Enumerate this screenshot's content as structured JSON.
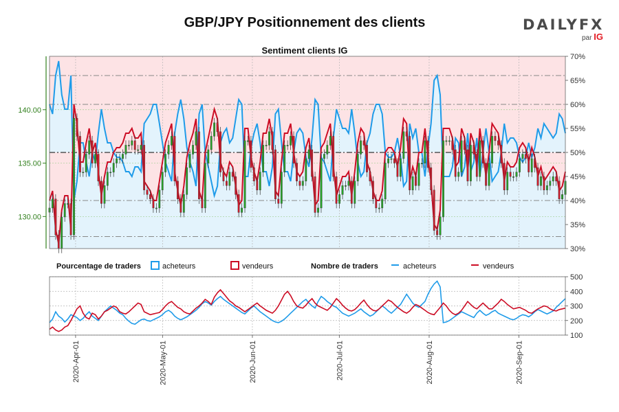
{
  "title": "GBP/JPY Positionnement des clients",
  "logo": {
    "main": "DAILYFX",
    "sub_prefix": "par",
    "sub_brand": "IG"
  },
  "colors": {
    "buyers": "#1e9be9",
    "sellers": "#cc0c24",
    "buyers_fill": "#e3f3fc",
    "sellers_fill": "#fde3e5",
    "candle_up": "#27a327",
    "candle_down": "#d11a2a",
    "price_axis": "#33801f"
  },
  "legend": {
    "pct_heading": "Pourcentage de traders",
    "count_heading": "Nombre de traders",
    "buyers": "acheteurs",
    "sellers": "vendeurs"
  },
  "chart_data": [
    {
      "type": "line",
      "title": "Sentiment clients IG",
      "x_ticks": [
        "2020-Apr-01",
        "2020-May-01",
        "2020-Jun-01",
        "2020-Jul-01",
        "2020-Aug-01",
        "2020-Sep-01"
      ],
      "x_range": [
        "2020-03-23",
        "2020-09-17"
      ],
      "price_axis": {
        "ticks": [
          "130.00",
          "135.00",
          "140.00"
        ],
        "range": [
          127,
          145
        ]
      },
      "pct_axis": {
        "ticks": [
          "30%",
          "35%",
          "40%",
          "45%",
          "50%",
          "55%",
          "60%",
          "65%",
          "70%"
        ],
        "range": [
          30,
          70
        ]
      },
      "series": [
        {
          "name": "acheteurs",
          "values_pct": [
            60,
            58,
            66,
            69,
            62,
            59,
            59,
            66,
            40,
            44,
            52,
            52,
            48,
            45,
            50,
            48,
            54,
            59,
            55,
            52,
            52,
            50,
            49,
            49,
            48,
            46,
            46,
            45,
            47,
            47,
            46,
            56,
            57,
            58,
            60,
            60,
            56,
            52,
            48,
            46,
            44,
            54,
            58,
            61,
            57,
            51,
            48,
            46,
            43,
            58,
            60,
            50,
            47,
            44,
            41,
            43,
            52,
            54,
            55,
            52,
            53,
            57,
            61,
            60,
            45,
            45,
            51,
            54,
            56,
            52,
            46,
            46,
            43,
            47,
            58,
            59,
            52,
            46,
            46,
            44,
            50,
            54,
            55,
            54,
            49,
            47,
            53,
            61,
            60,
            49,
            48,
            46,
            44,
            53,
            59,
            57,
            55,
            55,
            54,
            59,
            54,
            48,
            45,
            46,
            52,
            54,
            58,
            60,
            60,
            58,
            50,
            49,
            49,
            50,
            53,
            49,
            43,
            44,
            56,
            53,
            55,
            50,
            50,
            45,
            51,
            56,
            65,
            66,
            62,
            45,
            45,
            45,
            47,
            53,
            52,
            45,
            47,
            54,
            46,
            48,
            53,
            45,
            50,
            55,
            50,
            44,
            45,
            46,
            50,
            56,
            52,
            53,
            53,
            52,
            49,
            48,
            49,
            52,
            49,
            51,
            55,
            53,
            56,
            55,
            54,
            53,
            54,
            58,
            57,
            54
          ]
        },
        {
          "name": "vendeurs",
          "values_pct": [
            40,
            42,
            34,
            31,
            38,
            41,
            41,
            34,
            60,
            56,
            48,
            48,
            52,
            55,
            50,
            52,
            46,
            41,
            45,
            48,
            48,
            50,
            51,
            51,
            52,
            54,
            54,
            55,
            53,
            53,
            54,
            44,
            43,
            42,
            40,
            40,
            44,
            48,
            52,
            54,
            56,
            46,
            42,
            39,
            43,
            49,
            52,
            54,
            57,
            42,
            40,
            50,
            53,
            56,
            59,
            57,
            48,
            46,
            45,
            48,
            47,
            43,
            39,
            40,
            55,
            55,
            49,
            46,
            44,
            48,
            54,
            54,
            57,
            53,
            42,
            41,
            48,
            54,
            54,
            56,
            50,
            46,
            45,
            46,
            51,
            53,
            47,
            39,
            40,
            51,
            52,
            54,
            56,
            47,
            41,
            43,
            45,
            45,
            46,
            41,
            46,
            52,
            55,
            54,
            48,
            46,
            42,
            40,
            40,
            42,
            50,
            51,
            51,
            50,
            47,
            51,
            57,
            56,
            44,
            47,
            45,
            50,
            50,
            55,
            49,
            44,
            35,
            34,
            38,
            55,
            55,
            55,
            53,
            47,
            48,
            55,
            53,
            46,
            54,
            52,
            47,
            55,
            50,
            45,
            50,
            56,
            55,
            54,
            50,
            44,
            48,
            47,
            47,
            48,
            51,
            52,
            51,
            48,
            51,
            49,
            45,
            47,
            44,
            45,
            46,
            47,
            46,
            42,
            43,
            46
          ]
        }
      ],
      "reference_lines_pct": [
        32.5,
        40,
        50,
        60,
        66
      ]
    },
    {
      "type": "line",
      "x_range": [
        "2020-03-23",
        "2020-09-17"
      ],
      "count_axis": {
        "ticks": [
          "100",
          "200",
          "300",
          "400",
          "500"
        ],
        "range": [
          100,
          500
        ]
      },
      "series": [
        {
          "name": "acheteurs",
          "values": [
            185,
            210,
            260,
            230,
            215,
            190,
            210,
            240,
            230,
            220,
            200,
            215,
            240,
            260,
            230,
            215,
            200,
            230,
            260,
            280,
            300,
            285,
            270,
            250,
            240,
            215,
            195,
            180,
            175,
            190,
            205,
            210,
            200,
            195,
            205,
            215,
            225,
            240,
            260,
            270,
            255,
            230,
            215,
            205,
            215,
            225,
            240,
            255,
            270,
            290,
            315,
            330,
            320,
            305,
            330,
            350,
            365,
            345,
            330,
            315,
            300,
            285,
            270,
            255,
            245,
            265,
            285,
            300,
            280,
            260,
            245,
            230,
            215,
            200,
            190,
            185,
            195,
            210,
            230,
            250,
            270,
            290,
            310,
            330,
            345,
            320,
            300,
            285,
            330,
            365,
            350,
            330,
            315,
            300,
            290,
            270,
            250,
            240,
            230,
            240,
            250,
            265,
            280,
            260,
            245,
            230,
            240,
            260,
            280,
            300,
            285,
            265,
            250,
            270,
            290,
            310,
            345,
            380,
            350,
            320,
            300,
            290,
            310,
            330,
            380,
            420,
            450,
            470,
            430,
            185,
            190,
            200,
            215,
            230,
            245,
            260,
            250,
            240,
            230,
            220,
            250,
            270,
            250,
            235,
            245,
            260,
            270,
            250,
            240,
            230,
            220,
            210,
            205,
            215,
            230,
            240,
            235,
            225,
            240,
            260,
            275,
            265,
            255,
            245,
            255,
            265,
            290,
            310,
            330,
            350
          ]
        },
        {
          "name": "vendeurs",
          "values": [
            140,
            155,
            135,
            125,
            135,
            155,
            165,
            200,
            240,
            280,
            300,
            250,
            220,
            210,
            250,
            240,
            210,
            230,
            260,
            270,
            285,
            300,
            290,
            260,
            250,
            245,
            260,
            280,
            300,
            320,
            310,
            260,
            250,
            240,
            245,
            250,
            255,
            275,
            300,
            320,
            330,
            310,
            290,
            280,
            260,
            250,
            245,
            265,
            285,
            300,
            320,
            345,
            330,
            310,
            360,
            390,
            410,
            385,
            360,
            335,
            320,
            300,
            290,
            275,
            260,
            275,
            290,
            305,
            320,
            300,
            285,
            270,
            260,
            250,
            270,
            300,
            340,
            380,
            400,
            370,
            330,
            300,
            290,
            285,
            305,
            330,
            350,
            320,
            300,
            290,
            280,
            270,
            290,
            320,
            350,
            330,
            305,
            285,
            270,
            265,
            275,
            295,
            320,
            340,
            310,
            285,
            270,
            265,
            280,
            300,
            320,
            340,
            330,
            310,
            290,
            275,
            260,
            250,
            265,
            290,
            310,
            300,
            285,
            270,
            255,
            245,
            240,
            265,
            290,
            320,
            300,
            270,
            250,
            240,
            250,
            270,
            300,
            330,
            310,
            290,
            280,
            300,
            320,
            300,
            280,
            280,
            300,
            320,
            345,
            330,
            310,
            295,
            280,
            285,
            290,
            280,
            270,
            255,
            250,
            265,
            280,
            290,
            300,
            295,
            280,
            270,
            265,
            275,
            280,
            285
          ]
        }
      ]
    }
  ]
}
